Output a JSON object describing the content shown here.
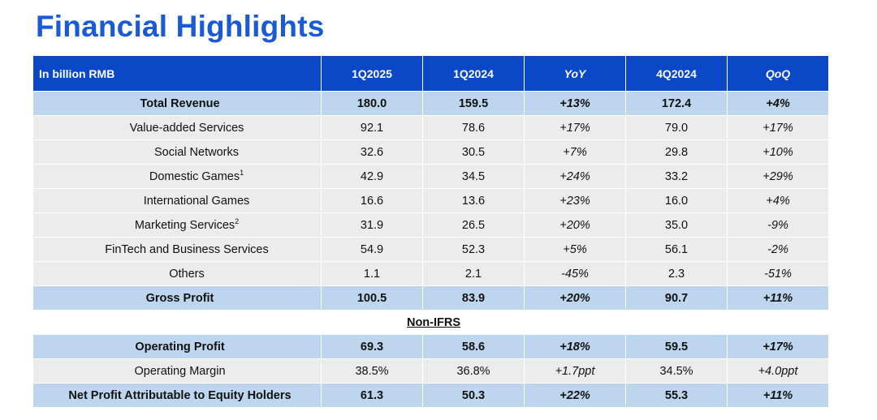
{
  "title": "Financial Highlights",
  "header": {
    "unit": "In billion RMB",
    "columns": [
      "1Q2025",
      "1Q2024",
      "YoY",
      "4Q2024",
      "QoQ"
    ]
  },
  "rows": [
    {
      "label": "Total Revenue",
      "sup": "",
      "values": [
        "180.0",
        "159.5",
        "+13%",
        "172.4",
        "+4%"
      ]
    },
    {
      "label": "Value-added Services",
      "sup": "",
      "values": [
        "92.1",
        "78.6",
        "+17%",
        "79.0",
        "+17%"
      ]
    },
    {
      "label": "Social Networks",
      "sup": "",
      "values": [
        "32.6",
        "30.5",
        "+7%",
        "29.8",
        "+10%"
      ]
    },
    {
      "label": "Domestic Games",
      "sup": "1",
      "values": [
        "42.9",
        "34.5",
        "+24%",
        "33.2",
        "+29%"
      ]
    },
    {
      "label": "International Games",
      "sup": "",
      "values": [
        "16.6",
        "13.6",
        "+23%",
        "16.0",
        "+4%"
      ]
    },
    {
      "label": "Marketing Services",
      "sup": "2",
      "values": [
        "31.9",
        "26.5",
        "+20%",
        "35.0",
        "-9%"
      ]
    },
    {
      "label": "FinTech and Business Services",
      "sup": "",
      "values": [
        "54.9",
        "52.3",
        "+5%",
        "56.1",
        "-2%"
      ]
    },
    {
      "label": "Others",
      "sup": "",
      "values": [
        "1.1",
        "2.1",
        "-45%",
        "2.3",
        "-51%"
      ]
    },
    {
      "label": "Gross Profit",
      "sup": "",
      "values": [
        "100.5",
        "83.9",
        "+20%",
        "90.7",
        "+11%"
      ]
    },
    {
      "label": "Non-IFRS",
      "sup": "",
      "values": []
    },
    {
      "label": "Operating Profit",
      "sup": "",
      "values": [
        "69.3",
        "58.6",
        "+18%",
        "59.5",
        "+17%"
      ]
    },
    {
      "label": "Operating Margin",
      "sup": "",
      "values": [
        "38.5%",
        "36.8%",
        "+1.7ppt",
        "34.5%",
        "+4.0ppt"
      ]
    },
    {
      "label": "Net Profit Attributable to Equity Holders",
      "sup": "",
      "values": [
        "61.3",
        "50.3",
        "+22%",
        "55.3",
        "+11%"
      ]
    }
  ]
}
